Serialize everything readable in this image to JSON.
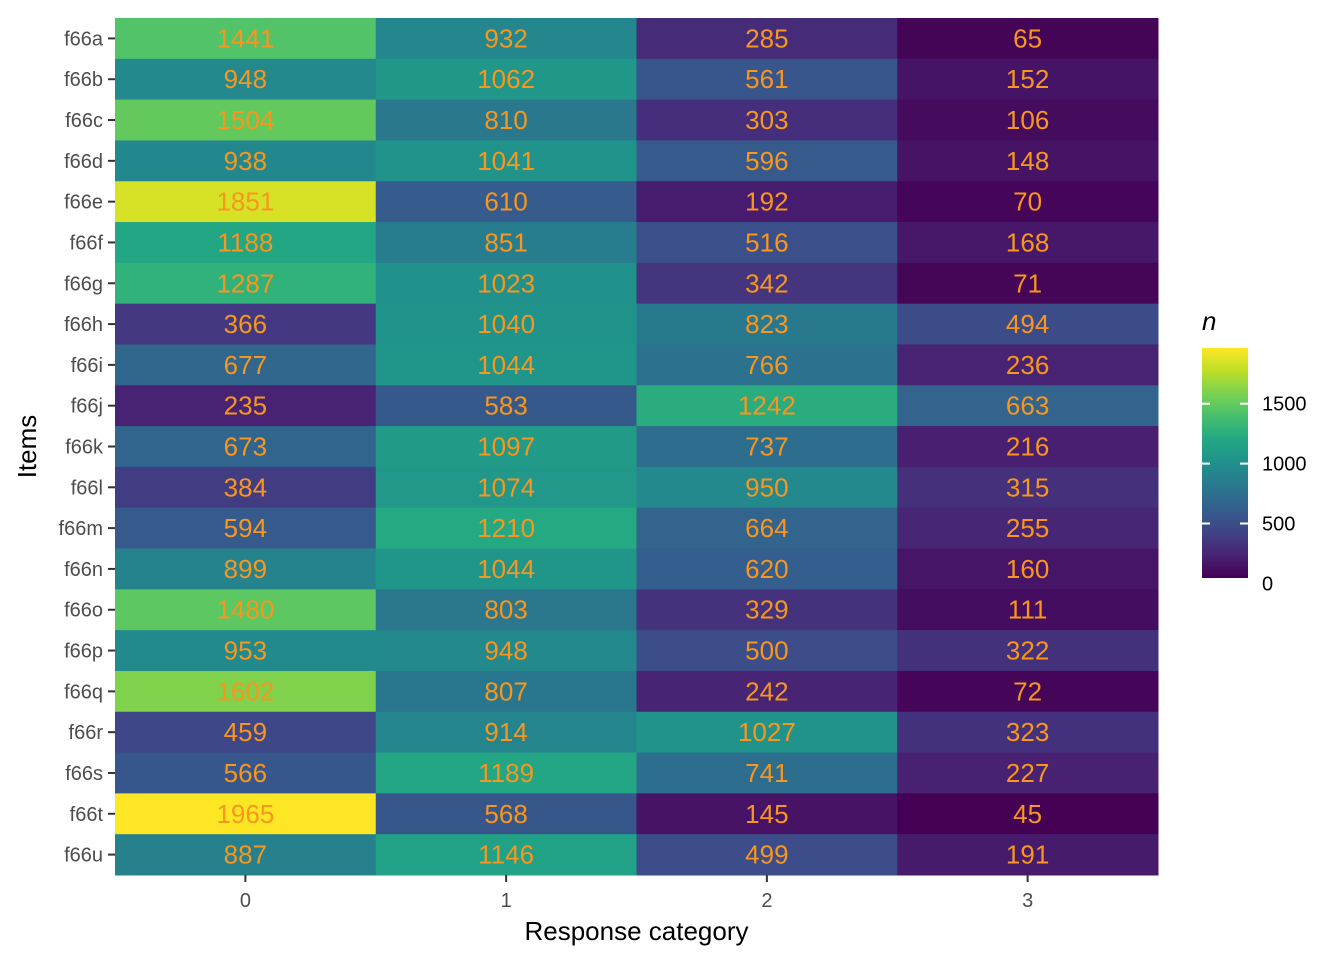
{
  "chart_data": {
    "type": "heatmap",
    "title": "",
    "xlabel": "Response category",
    "ylabel": "Items",
    "x_categories": [
      "0",
      "1",
      "2",
      "3"
    ],
    "y_categories": [
      "f66a",
      "f66b",
      "f66c",
      "f66d",
      "f66e",
      "f66f",
      "f66g",
      "f66h",
      "f66i",
      "f66j",
      "f66k",
      "f66l",
      "f66m",
      "f66n",
      "f66o",
      "f66p",
      "f66q",
      "f66r",
      "f66s",
      "f66t",
      "f66u"
    ],
    "values": [
      [
        1441,
        932,
        285,
        65
      ],
      [
        948,
        1062,
        561,
        152
      ],
      [
        1504,
        810,
        303,
        106
      ],
      [
        938,
        1041,
        596,
        148
      ],
      [
        1851,
        610,
        192,
        70
      ],
      [
        1188,
        851,
        516,
        168
      ],
      [
        1287,
        1023,
        342,
        71
      ],
      [
        366,
        1040,
        823,
        494
      ],
      [
        677,
        1044,
        766,
        236
      ],
      [
        235,
        583,
        1242,
        663
      ],
      [
        673,
        1097,
        737,
        216
      ],
      [
        384,
        1074,
        950,
        315
      ],
      [
        594,
        1210,
        664,
        255
      ],
      [
        899,
        1044,
        620,
        160
      ],
      [
        1480,
        803,
        329,
        111
      ],
      [
        953,
        948,
        500,
        322
      ],
      [
        1602,
        807,
        242,
        72
      ],
      [
        459,
        914,
        1027,
        323
      ],
      [
        566,
        1189,
        741,
        227
      ],
      [
        1965,
        568,
        145,
        45
      ],
      [
        887,
        1146,
        499,
        191
      ]
    ],
    "legend": {
      "title": "n",
      "ticks": [
        0,
        500,
        1000,
        1500
      ],
      "range": [
        45,
        1965
      ],
      "position": "right"
    },
    "colorscale": "viridis",
    "label_color": "#f8961e",
    "grid": true,
    "panel_background": "#ebebeb"
  }
}
